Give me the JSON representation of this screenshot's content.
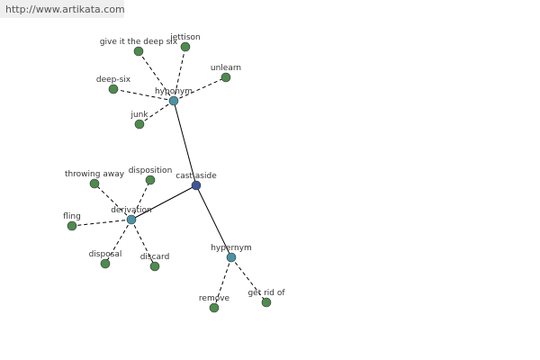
{
  "header": {
    "url": "http://www.artikata.com"
  },
  "graph": {
    "center": "cast aside",
    "groups": [
      {
        "label": "hyponym",
        "leaves": [
          "give it the deep six",
          "jettison",
          "unlearn",
          "deep-six",
          "junk"
        ]
      },
      {
        "label": "derivation",
        "leaves": [
          "throwing away",
          "disposition",
          "fling",
          "disposal",
          "discard"
        ]
      },
      {
        "label": "hypernym",
        "leaves": [
          "remove",
          "get rid of"
        ]
      }
    ]
  }
}
